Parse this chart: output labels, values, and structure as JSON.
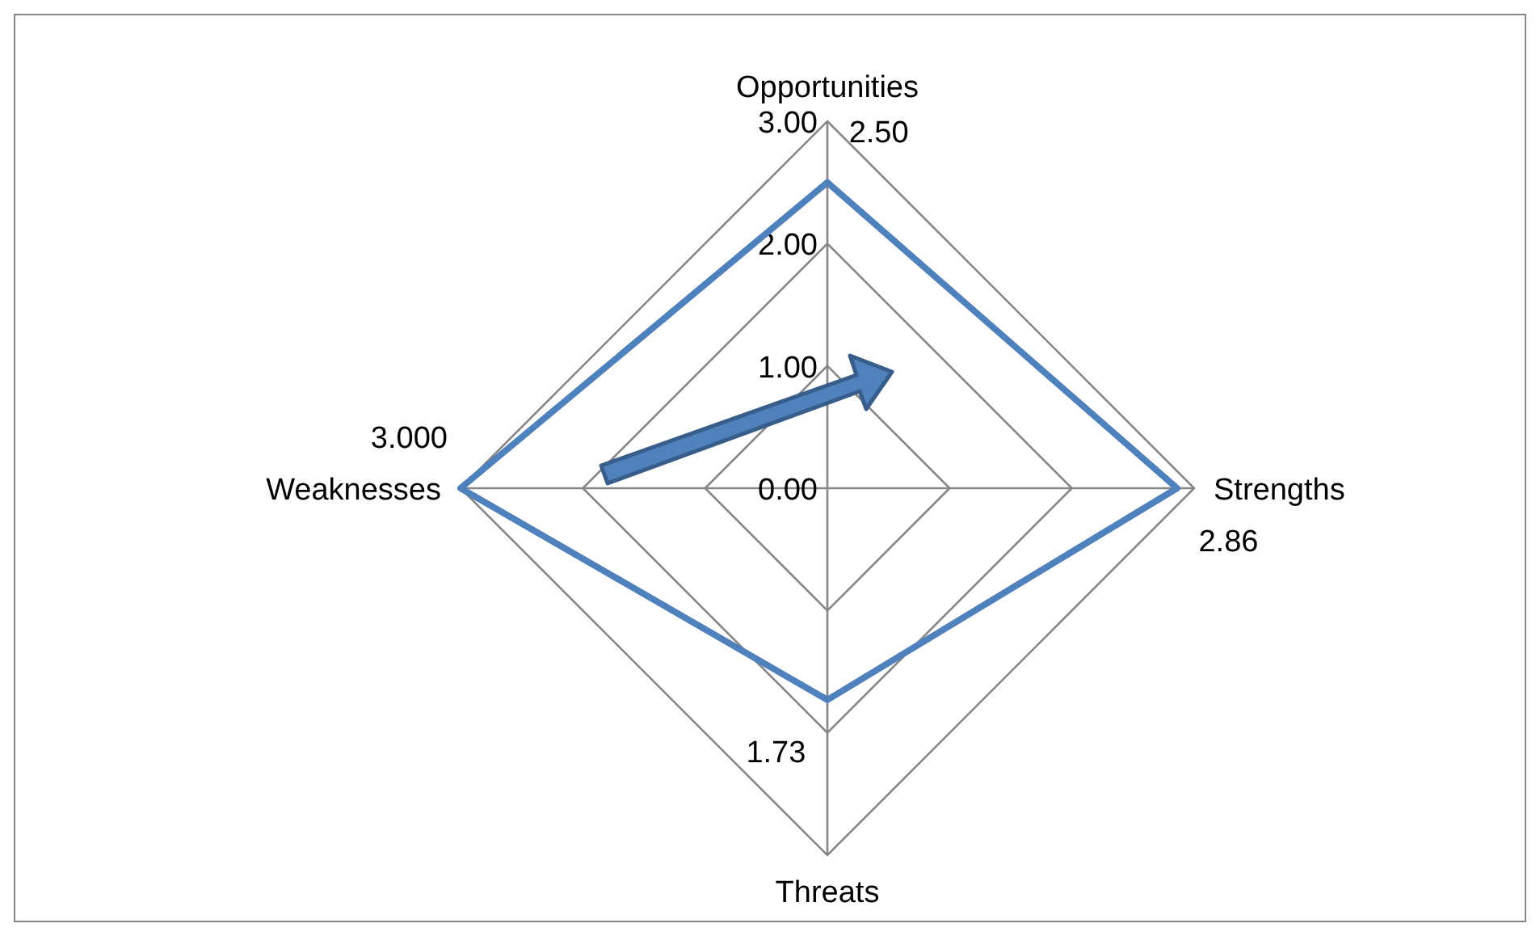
{
  "chart_data": {
    "type": "radar",
    "categories": [
      "Opportunities",
      "Strengths",
      "Threats",
      "Weaknesses"
    ],
    "series": [
      {
        "color": "#4f81bd",
        "values": [
          2.5,
          2.86,
          1.73,
          3.0
        ],
        "value_labels": [
          "2.50",
          "2.86",
          "1.73",
          "3.000"
        ]
      }
    ],
    "ylim": [
      0,
      3
    ],
    "yticks": [
      {
        "value": 0,
        "label": "0.00"
      },
      {
        "value": 1,
        "label": "1.00"
      },
      {
        "value": 2,
        "label": "2.00"
      },
      {
        "value": 3,
        "label": "3.00"
      }
    ],
    "grid": true,
    "marker": "none"
  }
}
